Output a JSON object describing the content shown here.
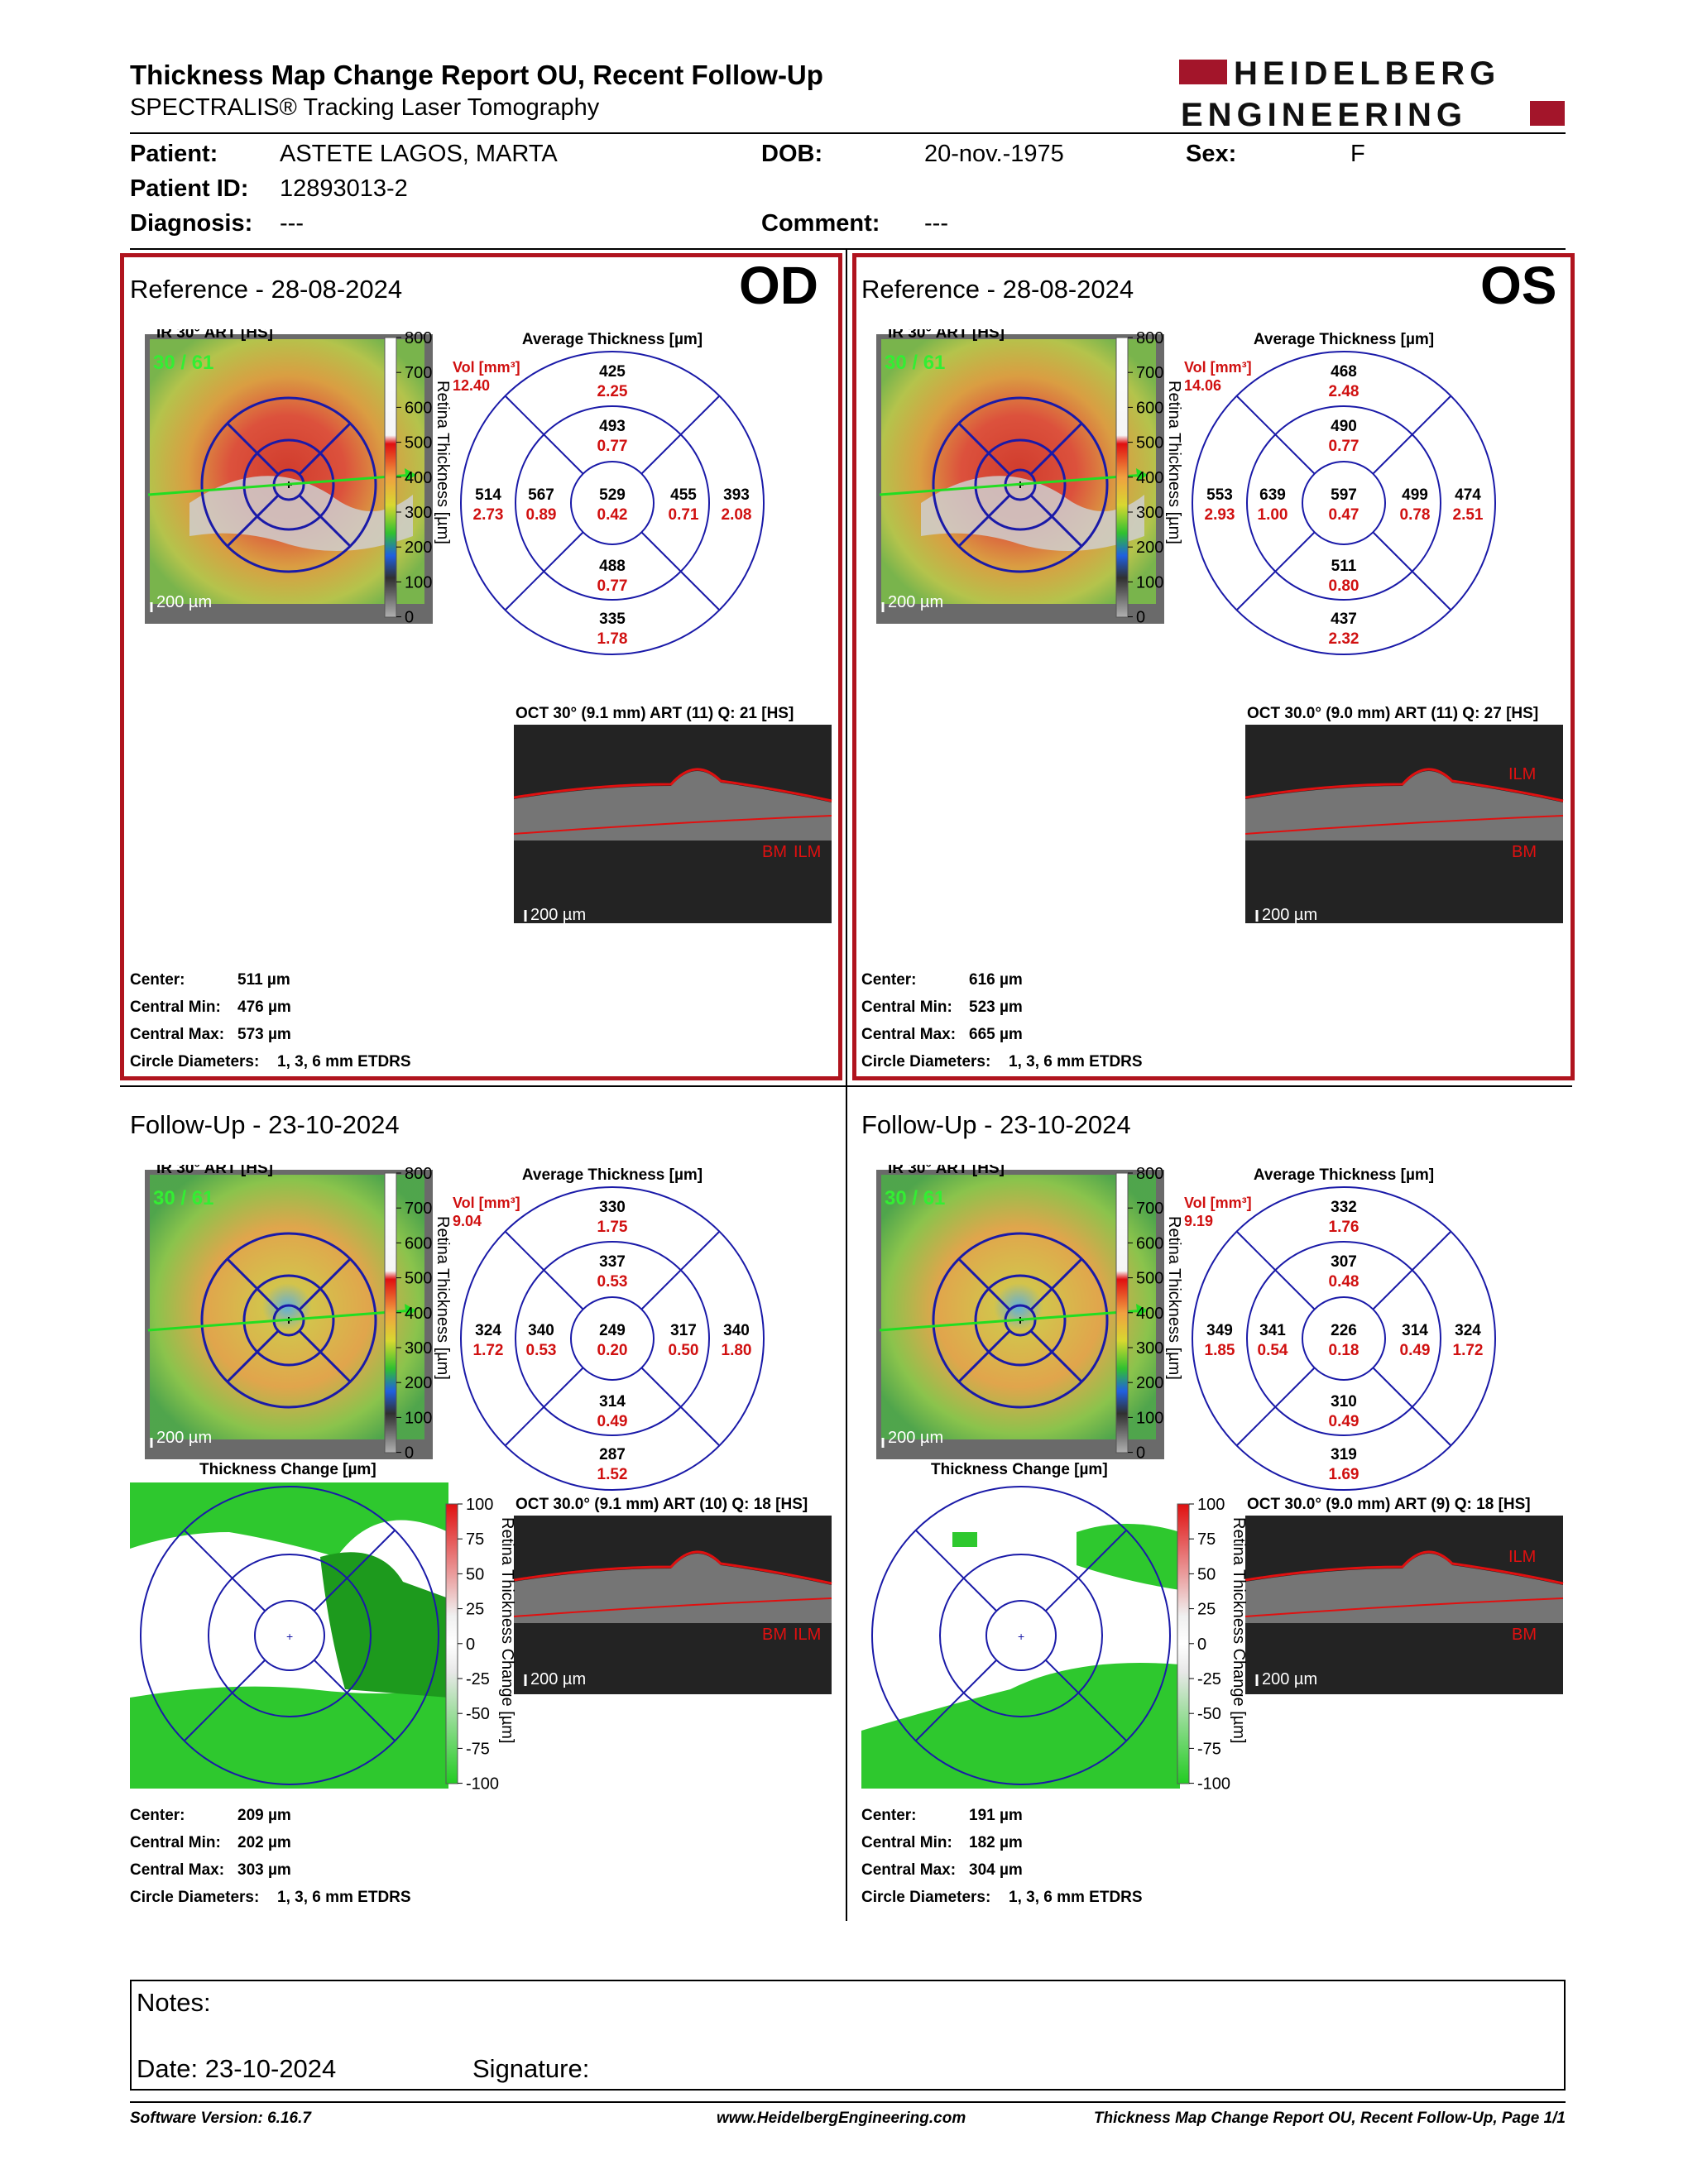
{
  "header": {
    "title": "Thickness Map Change Report OU, Recent Follow-Up",
    "subtitle": "SPECTRALIS® Tracking Laser Tomography",
    "logo_line1": "HEIDELBERG",
    "logo_line2": "ENGINEERING"
  },
  "patient": {
    "patient_label": "Patient:",
    "patient_value": "ASTETE LAGOS, MARTA",
    "id_label": "Patient ID:",
    "id_value": "12893013-2",
    "diag_label": "Diagnosis:",
    "diag_value": "---",
    "dob_label": "DOB:",
    "dob_value": "20-nov.-1975",
    "comment_label": "Comment:",
    "comment_value": "---",
    "sex_label": "Sex:",
    "sex_value": "F"
  },
  "colors": {
    "frame": "#b0141e",
    "grid": "#1a1aa8",
    "value_red": "#d01010",
    "green_line": "#22dd22"
  },
  "panels": [
    {
      "id": "od-ref",
      "title": "Reference - 28-08-2024",
      "eye": "OD",
      "ir_label": "IR 30° ART [HS]",
      "ir_count": "30 / 61",
      "scale": "200 µm",
      "colorbar_ticks": [
        "800",
        "700",
        "600",
        "500",
        "400",
        "300",
        "200",
        "100",
        "0"
      ],
      "colorbar_title": "Retina Thickness [µm]",
      "etdrs_title": "Average Thickness [µm]",
      "vol_label": "Vol [mm³]",
      "vol_value": "12.40",
      "sectors": {
        "outer_top": [
          "425",
          "2.25"
        ],
        "inner_top": [
          "493",
          "0.77"
        ],
        "outer_left": [
          "514",
          "2.73"
        ],
        "inner_left": [
          "567",
          "0.89"
        ],
        "center": [
          "529",
          "0.42"
        ],
        "inner_right": [
          "455",
          "0.71"
        ],
        "outer_right": [
          "393",
          "2.08"
        ],
        "inner_bottom": [
          "488",
          "0.77"
        ],
        "outer_bottom": [
          "335",
          "1.78"
        ]
      },
      "oct_label": "OCT 30° (9.1 mm) ART (11) Q: 21 [HS]",
      "oct_tags": [
        "BM",
        "ILM"
      ],
      "oct_scale": "200 µm",
      "stats": [
        [
          "Center:",
          "511 µm"
        ],
        [
          "Central Min:",
          "476 µm"
        ],
        [
          "Central Max:",
          "573 µm"
        ],
        [
          "Circle Diameters:",
          "1, 3, 6 mm ETDRS"
        ]
      ]
    },
    {
      "id": "os-ref",
      "title": "Reference - 28-08-2024",
      "eye": "OS",
      "ir_label": "IR 30° ART [HS]",
      "ir_count": "30 / 61",
      "scale": "200 µm",
      "colorbar_ticks": [
        "800",
        "700",
        "600",
        "500",
        "400",
        "300",
        "200",
        "100",
        "0"
      ],
      "colorbar_title": "Retina Thickness [µm]",
      "etdrs_title": "Average Thickness [µm]",
      "vol_label": "Vol [mm³]",
      "vol_value": "14.06",
      "sectors": {
        "outer_top": [
          "468",
          "2.48"
        ],
        "inner_top": [
          "490",
          "0.77"
        ],
        "outer_left": [
          "553",
          "2.93"
        ],
        "inner_left": [
          "639",
          "1.00"
        ],
        "center": [
          "597",
          "0.47"
        ],
        "inner_right": [
          "499",
          "0.78"
        ],
        "outer_right": [
          "474",
          "2.51"
        ],
        "inner_bottom": [
          "511",
          "0.80"
        ],
        "outer_bottom": [
          "437",
          "2.32"
        ]
      },
      "oct_label": "OCT 30.0° (9.0 mm) ART (11) Q: 27 [HS]",
      "oct_tags": [
        "ILM",
        "BM"
      ],
      "oct_scale": "200 µm",
      "stats": [
        [
          "Center:",
          "616 µm"
        ],
        [
          "Central Min:",
          "523 µm"
        ],
        [
          "Central Max:",
          "665 µm"
        ],
        [
          "Circle Diameters:",
          "1, 3, 6 mm ETDRS"
        ]
      ]
    },
    {
      "id": "od-fu",
      "title": "Follow-Up - 23-10-2024",
      "eye": "",
      "ir_label": "IR 30° ART [HS]",
      "ir_count": "30 / 61",
      "scale": "200 µm",
      "colorbar_ticks": [
        "800",
        "700",
        "600",
        "500",
        "400",
        "300",
        "200",
        "100",
        "0"
      ],
      "colorbar_title": "Retina Thickness [µm]",
      "etdrs_title": "Average Thickness [µm]",
      "vol_label": "Vol [mm³]",
      "vol_value": "9.04",
      "sectors": {
        "outer_top": [
          "330",
          "1.75"
        ],
        "inner_top": [
          "337",
          "0.53"
        ],
        "outer_left": [
          "324",
          "1.72"
        ],
        "inner_left": [
          "340",
          "0.53"
        ],
        "center": [
          "249",
          "0.20"
        ],
        "inner_right": [
          "317",
          "0.50"
        ],
        "outer_right": [
          "340",
          "1.80"
        ],
        "inner_bottom": [
          "314",
          "0.49"
        ],
        "outer_bottom": [
          "287",
          "1.52"
        ]
      },
      "change_title": "Thickness Change [µm]",
      "change_ticks": [
        "100",
        "75",
        "50",
        "25",
        "0",
        "-25",
        "-50",
        "-75",
        "-100"
      ],
      "change_bar_title": "Retina Thickness Change [µm]",
      "oct_label": "OCT 30.0° (9.1 mm) ART (10) Q: 18 [HS]",
      "oct_tags": [
        "BM",
        "ILM"
      ],
      "oct_scale": "200 µm",
      "stats": [
        [
          "Center:",
          "209 µm"
        ],
        [
          "Central Min:",
          "202 µm"
        ],
        [
          "Central Max:",
          "303 µm"
        ],
        [
          "Circle Diameters:",
          "1, 3, 6 mm ETDRS"
        ]
      ]
    },
    {
      "id": "os-fu",
      "title": "Follow-Up - 23-10-2024",
      "eye": "",
      "ir_label": "IR 30° ART [HS]",
      "ir_count": "30 / 61",
      "scale": "200 µm",
      "colorbar_ticks": [
        "800",
        "700",
        "600",
        "500",
        "400",
        "300",
        "200",
        "100",
        "0"
      ],
      "colorbar_title": "Retina Thickness [µm]",
      "etdrs_title": "Average Thickness [µm]",
      "vol_label": "Vol [mm³]",
      "vol_value": "9.19",
      "sectors": {
        "outer_top": [
          "332",
          "1.76"
        ],
        "inner_top": [
          "307",
          "0.48"
        ],
        "outer_left": [
          "349",
          "1.85"
        ],
        "inner_left": [
          "341",
          "0.54"
        ],
        "center": [
          "226",
          "0.18"
        ],
        "inner_right": [
          "314",
          "0.49"
        ],
        "outer_right": [
          "324",
          "1.72"
        ],
        "inner_bottom": [
          "310",
          "0.49"
        ],
        "outer_bottom": [
          "319",
          "1.69"
        ]
      },
      "change_title": "Thickness Change [µm]",
      "change_ticks": [
        "100",
        "75",
        "50",
        "25",
        "0",
        "-25",
        "-50",
        "-75",
        "-100"
      ],
      "change_bar_title": "Retina Thickness Change [µm]",
      "oct_label": "OCT 30.0° (9.0 mm) ART (9) Q: 18 [HS]",
      "oct_tags": [
        "ILM",
        "BM"
      ],
      "oct_scale": "200 µm",
      "stats": [
        [
          "Center:",
          "191 µm"
        ],
        [
          "Central Min:",
          "182 µm"
        ],
        [
          "Central Max:",
          "304 µm"
        ],
        [
          "Circle Diameters:",
          "1, 3, 6 mm ETDRS"
        ]
      ]
    }
  ],
  "notes": {
    "notes_label": "Notes:",
    "date_label": "Date: 23-10-2024",
    "signature_label": "Signature:"
  },
  "footer": {
    "left": "Software Version: 6.16.7",
    "center": "www.HeidelbergEngineering.com",
    "right": "Thickness Map Change Report OU, Recent Follow-Up, Page 1/1"
  }
}
